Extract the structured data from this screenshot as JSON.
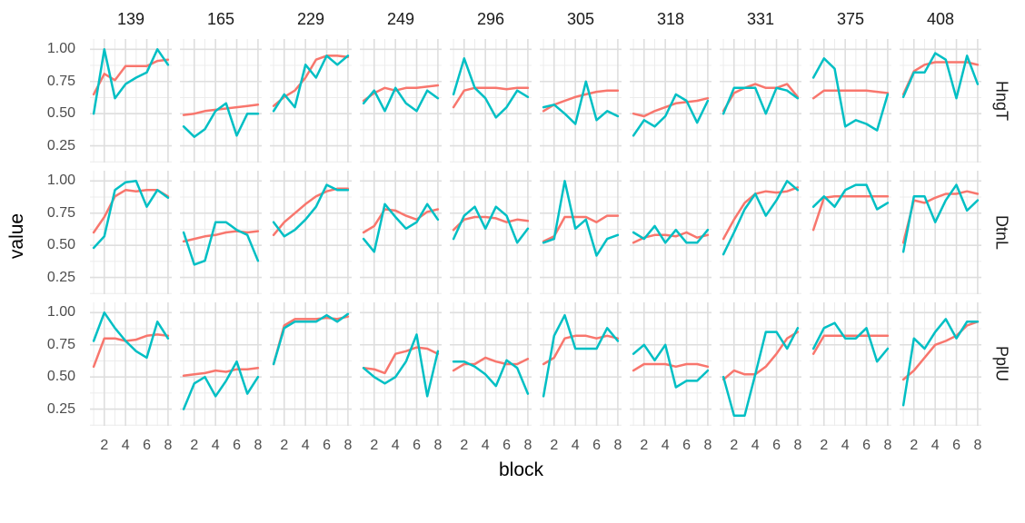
{
  "chart_data": {
    "type": "line",
    "title": "",
    "xlabel": "block",
    "ylabel": "value",
    "x": [
      1,
      2,
      3,
      4,
      5,
      6,
      7,
      8
    ],
    "x_ticks": [
      2,
      4,
      6,
      8
    ],
    "x_tick_labels": [
      "2",
      "4",
      "6",
      "8"
    ],
    "x_minor_ticks": [
      1,
      3,
      5,
      7
    ],
    "y_ticks": [
      1.0,
      0.75,
      0.5,
      0.25
    ],
    "y_tick_labels": [
      "1.00",
      "0.75",
      "0.50",
      "0.25"
    ],
    "y_minor_ticks": [
      0.875,
      0.625,
      0.375,
      0.125
    ],
    "xlim": [
      0.65,
      8.35
    ],
    "ylim": [
      0.12,
      1.08
    ],
    "grid": true,
    "legend": false,
    "col_facets": [
      "139",
      "165",
      "229",
      "249",
      "296",
      "305",
      "318",
      "331",
      "375",
      "408"
    ],
    "row_facets": [
      "HngT",
      "DtnL",
      "PplU"
    ],
    "series_meta": [
      {
        "name": "red",
        "color": "#F8766D"
      },
      {
        "name": "teal",
        "color": "#00BFC4"
      }
    ],
    "panel_colors": {
      "grid_major": "#dedede",
      "grid_minor": "#ececec",
      "background": "#ffffff"
    },
    "facets": [
      {
        "row": "HngT",
        "col": "139",
        "red": [
          0.65,
          0.81,
          0.76,
          0.87,
          0.87,
          0.87,
          0.91,
          0.92
        ],
        "teal": [
          0.5,
          1.0,
          0.62,
          0.73,
          0.78,
          0.82,
          1.0,
          0.88
        ]
      },
      {
        "row": "HngT",
        "col": "165",
        "red": [
          0.49,
          0.5,
          0.52,
          0.53,
          0.54,
          0.55,
          0.56,
          0.57
        ],
        "teal": [
          0.4,
          0.32,
          0.38,
          0.52,
          0.58,
          0.33,
          0.5,
          0.5
        ]
      },
      {
        "row": "HngT",
        "col": "229",
        "red": [
          0.56,
          0.63,
          0.68,
          0.78,
          0.92,
          0.95,
          0.95,
          0.94
        ],
        "teal": [
          0.52,
          0.65,
          0.55,
          0.88,
          0.78,
          0.95,
          0.88,
          0.95
        ]
      },
      {
        "row": "HngT",
        "col": "249",
        "red": [
          0.6,
          0.66,
          0.7,
          0.68,
          0.7,
          0.7,
          0.71,
          0.72
        ],
        "teal": [
          0.58,
          0.68,
          0.52,
          0.7,
          0.58,
          0.52,
          0.68,
          0.62
        ]
      },
      {
        "row": "HngT",
        "col": "296",
        "red": [
          0.55,
          0.68,
          0.7,
          0.7,
          0.7,
          0.69,
          0.7,
          0.7
        ],
        "teal": [
          0.65,
          0.93,
          0.7,
          0.62,
          0.47,
          0.55,
          0.68,
          0.63
        ]
      },
      {
        "row": "HngT",
        "col": "305",
        "red": [
          0.52,
          0.57,
          0.6,
          0.63,
          0.65,
          0.67,
          0.68,
          0.68
        ],
        "teal": [
          0.55,
          0.57,
          0.5,
          0.42,
          0.75,
          0.45,
          0.52,
          0.48
        ]
      },
      {
        "row": "HngT",
        "col": "318",
        "red": [
          0.5,
          0.48,
          0.52,
          0.55,
          0.58,
          0.59,
          0.6,
          0.62
        ],
        "teal": [
          0.33,
          0.45,
          0.4,
          0.48,
          0.65,
          0.6,
          0.43,
          0.6
        ]
      },
      {
        "row": "HngT",
        "col": "331",
        "red": [
          0.52,
          0.66,
          0.7,
          0.73,
          0.7,
          0.7,
          0.73,
          0.63
        ],
        "teal": [
          0.5,
          0.7,
          0.7,
          0.7,
          0.5,
          0.7,
          0.68,
          0.62
        ]
      },
      {
        "row": "HngT",
        "col": "375",
        "red": [
          0.62,
          0.68,
          0.68,
          0.68,
          0.68,
          0.68,
          0.67,
          0.66
        ],
        "teal": [
          0.78,
          0.93,
          0.85,
          0.4,
          0.45,
          0.42,
          0.37,
          0.65
        ]
      },
      {
        "row": "HngT",
        "col": "408",
        "red": [
          0.65,
          0.83,
          0.88,
          0.9,
          0.9,
          0.9,
          0.9,
          0.88
        ],
        "teal": [
          0.63,
          0.82,
          0.82,
          0.97,
          0.92,
          0.62,
          0.95,
          0.73
        ]
      },
      {
        "row": "DtnL",
        "col": "139",
        "red": [
          0.6,
          0.72,
          0.88,
          0.93,
          0.92,
          0.93,
          0.93,
          0.88
        ],
        "teal": [
          0.48,
          0.57,
          0.93,
          0.99,
          1.0,
          0.8,
          0.93,
          0.87
        ]
      },
      {
        "row": "DtnL",
        "col": "165",
        "red": [
          0.53,
          0.55,
          0.57,
          0.58,
          0.6,
          0.61,
          0.6,
          0.61
        ],
        "teal": [
          0.6,
          0.35,
          0.38,
          0.68,
          0.68,
          0.62,
          0.58,
          0.38
        ]
      },
      {
        "row": "DtnL",
        "col": "229",
        "red": [
          0.58,
          0.68,
          0.75,
          0.82,
          0.88,
          0.92,
          0.94,
          0.94
        ],
        "teal": [
          0.68,
          0.57,
          0.62,
          0.7,
          0.8,
          0.97,
          0.93,
          0.93
        ]
      },
      {
        "row": "DtnL",
        "col": "249",
        "red": [
          0.6,
          0.65,
          0.78,
          0.77,
          0.73,
          0.7,
          0.76,
          0.78
        ],
        "teal": [
          0.55,
          0.45,
          0.82,
          0.72,
          0.63,
          0.68,
          0.82,
          0.7
        ]
      },
      {
        "row": "DtnL",
        "col": "296",
        "red": [
          0.62,
          0.7,
          0.72,
          0.72,
          0.71,
          0.68,
          0.7,
          0.69
        ],
        "teal": [
          0.55,
          0.73,
          0.8,
          0.63,
          0.8,
          0.73,
          0.52,
          0.63
        ]
      },
      {
        "row": "DtnL",
        "col": "305",
        "red": [
          0.53,
          0.57,
          0.72,
          0.72,
          0.72,
          0.68,
          0.73,
          0.73
        ],
        "teal": [
          0.52,
          0.55,
          1.0,
          0.63,
          0.7,
          0.42,
          0.55,
          0.58
        ]
      },
      {
        "row": "DtnL",
        "col": "318",
        "red": [
          0.52,
          0.56,
          0.58,
          0.58,
          0.57,
          0.6,
          0.56,
          0.58
        ],
        "teal": [
          0.6,
          0.55,
          0.65,
          0.52,
          0.62,
          0.52,
          0.52,
          0.62
        ]
      },
      {
        "row": "DtnL",
        "col": "331",
        "red": [
          0.55,
          0.7,
          0.83,
          0.9,
          0.92,
          0.91,
          0.92,
          0.95
        ],
        "teal": [
          0.43,
          0.6,
          0.78,
          0.9,
          0.73,
          0.85,
          1.0,
          0.93
        ]
      },
      {
        "row": "DtnL",
        "col": "375",
        "red": [
          0.62,
          0.87,
          0.88,
          0.88,
          0.88,
          0.88,
          0.88,
          0.88
        ],
        "teal": [
          0.8,
          0.88,
          0.8,
          0.93,
          0.97,
          0.97,
          0.78,
          0.83
        ]
      },
      {
        "row": "DtnL",
        "col": "408",
        "red": [
          0.52,
          0.85,
          0.83,
          0.87,
          0.9,
          0.9,
          0.92,
          0.9
        ],
        "teal": [
          0.45,
          0.88,
          0.88,
          0.68,
          0.85,
          0.97,
          0.77,
          0.85
        ]
      },
      {
        "row": "PplU",
        "col": "139",
        "red": [
          0.58,
          0.8,
          0.8,
          0.78,
          0.79,
          0.82,
          0.83,
          0.82
        ],
        "teal": [
          0.78,
          1.0,
          0.88,
          0.78,
          0.7,
          0.65,
          0.93,
          0.8
        ]
      },
      {
        "row": "PplU",
        "col": "165",
        "red": [
          0.51,
          0.52,
          0.53,
          0.55,
          0.54,
          0.56,
          0.56,
          0.57
        ],
        "teal": [
          0.25,
          0.45,
          0.5,
          0.35,
          0.47,
          0.62,
          0.37,
          0.5
        ]
      },
      {
        "row": "PplU",
        "col": "229",
        "red": [
          0.6,
          0.9,
          0.95,
          0.95,
          0.95,
          0.96,
          0.95,
          0.97
        ],
        "teal": [
          0.6,
          0.88,
          0.93,
          0.93,
          0.93,
          0.98,
          0.93,
          0.99
        ]
      },
      {
        "row": "PplU",
        "col": "249",
        "red": [
          0.57,
          0.56,
          0.53,
          0.68,
          0.7,
          0.73,
          0.72,
          0.68
        ],
        "teal": [
          0.57,
          0.5,
          0.45,
          0.5,
          0.62,
          0.83,
          0.35,
          0.7
        ]
      },
      {
        "row": "PplU",
        "col": "296",
        "red": [
          0.55,
          0.6,
          0.6,
          0.65,
          0.62,
          0.6,
          0.6,
          0.64
        ],
        "teal": [
          0.62,
          0.62,
          0.58,
          0.52,
          0.43,
          0.63,
          0.57,
          0.37
        ]
      },
      {
        "row": "PplU",
        "col": "305",
        "red": [
          0.6,
          0.65,
          0.8,
          0.82,
          0.82,
          0.8,
          0.82,
          0.8
        ],
        "teal": [
          0.35,
          0.82,
          0.98,
          0.72,
          0.72,
          0.72,
          0.88,
          0.78
        ]
      },
      {
        "row": "PplU",
        "col": "318",
        "red": [
          0.55,
          0.6,
          0.6,
          0.6,
          0.58,
          0.6,
          0.6,
          0.58
        ],
        "teal": [
          0.68,
          0.75,
          0.63,
          0.75,
          0.42,
          0.47,
          0.47,
          0.55
        ]
      },
      {
        "row": "PplU",
        "col": "331",
        "red": [
          0.48,
          0.55,
          0.52,
          0.52,
          0.58,
          0.68,
          0.8,
          0.85
        ],
        "teal": [
          0.5,
          0.2,
          0.2,
          0.52,
          0.85,
          0.85,
          0.72,
          0.88
        ]
      },
      {
        "row": "PplU",
        "col": "375",
        "red": [
          0.68,
          0.82,
          0.82,
          0.82,
          0.82,
          0.82,
          0.82,
          0.82
        ],
        "teal": [
          0.72,
          0.88,
          0.92,
          0.8,
          0.8,
          0.88,
          0.62,
          0.72
        ]
      },
      {
        "row": "PplU",
        "col": "408",
        "red": [
          0.48,
          0.55,
          0.65,
          0.75,
          0.78,
          0.82,
          0.9,
          0.93
        ],
        "teal": [
          0.28,
          0.8,
          0.72,
          0.85,
          0.95,
          0.8,
          0.93,
          0.93
        ]
      }
    ]
  }
}
